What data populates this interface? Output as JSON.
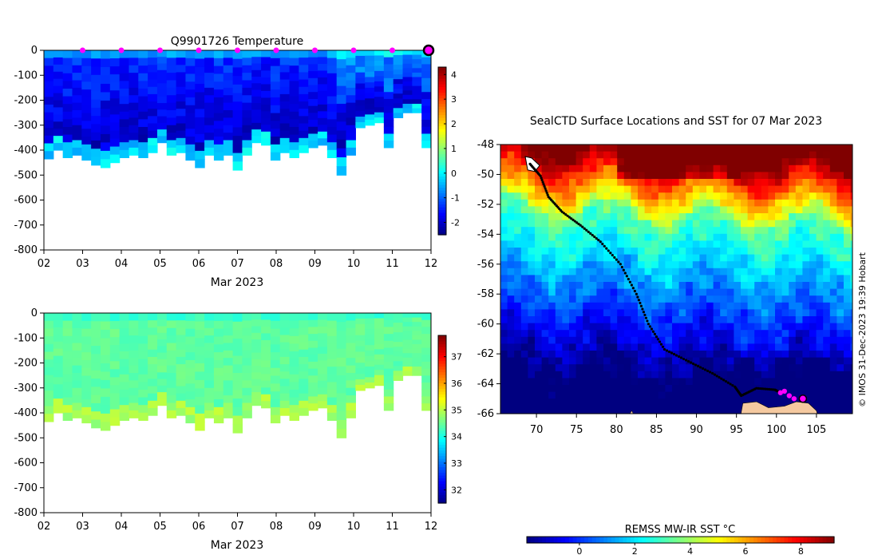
{
  "chart_data": [
    {
      "type": "heatmap",
      "name": "temperature-section",
      "title": "Q9901726  Temperature",
      "xlabel": "Mar 2023",
      "x_tick_labels": [
        "02",
        "03",
        "04",
        "05",
        "06",
        "07",
        "08",
        "09",
        "10",
        "11",
        "12"
      ],
      "x_range_days": [
        2,
        12
      ],
      "y_ticks": [
        0,
        -100,
        -200,
        -300,
        -400,
        -500,
        -600,
        -700,
        -800
      ],
      "ylim": [
        -800,
        0
      ],
      "colorbar_ticks": [
        4,
        3,
        2,
        1,
        0,
        -1,
        -2
      ],
      "colorbar_range": [
        -2.5,
        4.3
      ],
      "surface_markers_day": [
        3,
        4,
        5,
        6,
        7,
        8,
        9,
        10,
        11
      ],
      "current_position_day": 12,
      "profile_bottom_depths_m": [
        -435,
        -400,
        -430,
        -420,
        -440,
        -460,
        -470,
        -450,
        -430,
        -420,
        -430,
        -410,
        -370,
        -420,
        -410,
        -440,
        -470,
        -420,
        -440,
        -420,
        -480,
        -420,
        -370,
        -380,
        -440,
        -410,
        -430,
        -410,
        -390,
        -380,
        -430,
        -500,
        -420,
        -310,
        -300,
        -290,
        -390,
        -270,
        -250,
        -250,
        -390
      ]
    },
    {
      "type": "heatmap",
      "name": "salinity-section",
      "title": "",
      "xlabel": "Mar 2023",
      "x_tick_labels": [
        "02",
        "03",
        "04",
        "05",
        "06",
        "07",
        "08",
        "09",
        "10",
        "11",
        "12"
      ],
      "x_range_days": [
        2,
        12
      ],
      "y_ticks": [
        0,
        -100,
        -200,
        -300,
        -400,
        -500,
        -600,
        -700,
        -800
      ],
      "ylim": [
        -800,
        0
      ],
      "colorbar_ticks": [
        37,
        36,
        35,
        34,
        33,
        32
      ],
      "colorbar_range": [
        31.5,
        37.8
      ]
    },
    {
      "type": "heatmap",
      "name": "sst-map",
      "title": "SealCTD Surface Locations and SST for 07 Mar 2023",
      "x_ticks": [
        70,
        75,
        80,
        85,
        90,
        95,
        100,
        105
      ],
      "xlim": [
        65.5,
        109.5
      ],
      "y_ticks": [
        -48,
        -50,
        -52,
        -54,
        -56,
        -58,
        -60,
        -62,
        -64,
        -66
      ],
      "ylim": [
        -66,
        -48
      ],
      "colorbar_label": "REMSS MW-IR SST °C",
      "colorbar_ticks": [
        0,
        2,
        4,
        6,
        8
      ],
      "colorbar_range": [
        -1.9,
        9.2
      ],
      "track_lon_lat": [
        [
          69.2,
          -49.3
        ],
        [
          70.5,
          -50.1
        ],
        [
          71.5,
          -51.5
        ],
        [
          73.2,
          -52.5
        ],
        [
          75.5,
          -53.4
        ],
        [
          78,
          -54.5
        ],
        [
          80.5,
          -56
        ],
        [
          82.5,
          -58
        ],
        [
          84,
          -60
        ],
        [
          86,
          -61.7
        ],
        [
          89,
          -62.5
        ],
        [
          92,
          -63.3
        ],
        [
          94.8,
          -64.2
        ],
        [
          95.6,
          -64.8
        ],
        [
          97.5,
          -64.3
        ],
        [
          99.8,
          -64.4
        ],
        [
          100.5,
          -64.6
        ]
      ],
      "recent_positions_lon_lat": [
        [
          100.5,
          -64.6
        ],
        [
          101,
          -64.5
        ],
        [
          101.6,
          -64.8
        ],
        [
          102.2,
          -65.0
        ]
      ],
      "current_position_lon_lat": [
        103.3,
        -65.0
      ],
      "credit": "© IMOS 31-Dec-2023 19:39 Hobart"
    }
  ],
  "colors": {
    "marker": "#ff00ff",
    "land": "#f5c9a0",
    "track": "#000000"
  }
}
